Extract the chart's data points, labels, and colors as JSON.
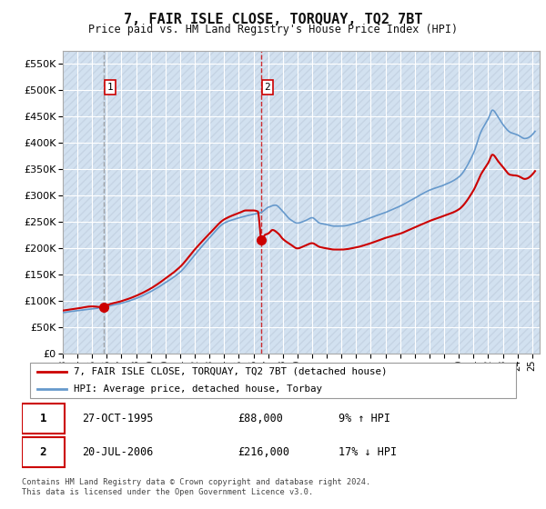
{
  "title": "7, FAIR ISLE CLOSE, TORQUAY, TQ2 7BT",
  "subtitle": "Price paid vs. HM Land Registry's House Price Index (HPI)",
  "ylim": [
    0,
    575000
  ],
  "yticks": [
    0,
    50000,
    100000,
    150000,
    200000,
    250000,
    300000,
    350000,
    400000,
    450000,
    500000,
    550000
  ],
  "xlim_start": 1993.0,
  "xlim_end": 2025.5,
  "sale1_date": 1995.82,
  "sale1_price": 88000,
  "sale1_label": "1",
  "sale2_date": 2006.55,
  "sale2_price": 216000,
  "sale2_label": "2",
  "sale_color": "#cc0000",
  "hpi_color": "#6699cc",
  "hatch_fill_color": "#c8d8ea",
  "plot_bg_color": "#dce9f5",
  "legend_label_red": "7, FAIR ISLE CLOSE, TORQUAY, TQ2 7BT (detached house)",
  "legend_label_blue": "HPI: Average price, detached house, Torbay",
  "table_row1": [
    "1",
    "27-OCT-1995",
    "£88,000",
    "9% ↑ HPI"
  ],
  "table_row2": [
    "2",
    "20-JUL-2006",
    "£216,000",
    "17% ↓ HPI"
  ],
  "footer": "Contains HM Land Registry data © Crown copyright and database right 2024.\nThis data is licensed under the Open Government Licence v3.0."
}
